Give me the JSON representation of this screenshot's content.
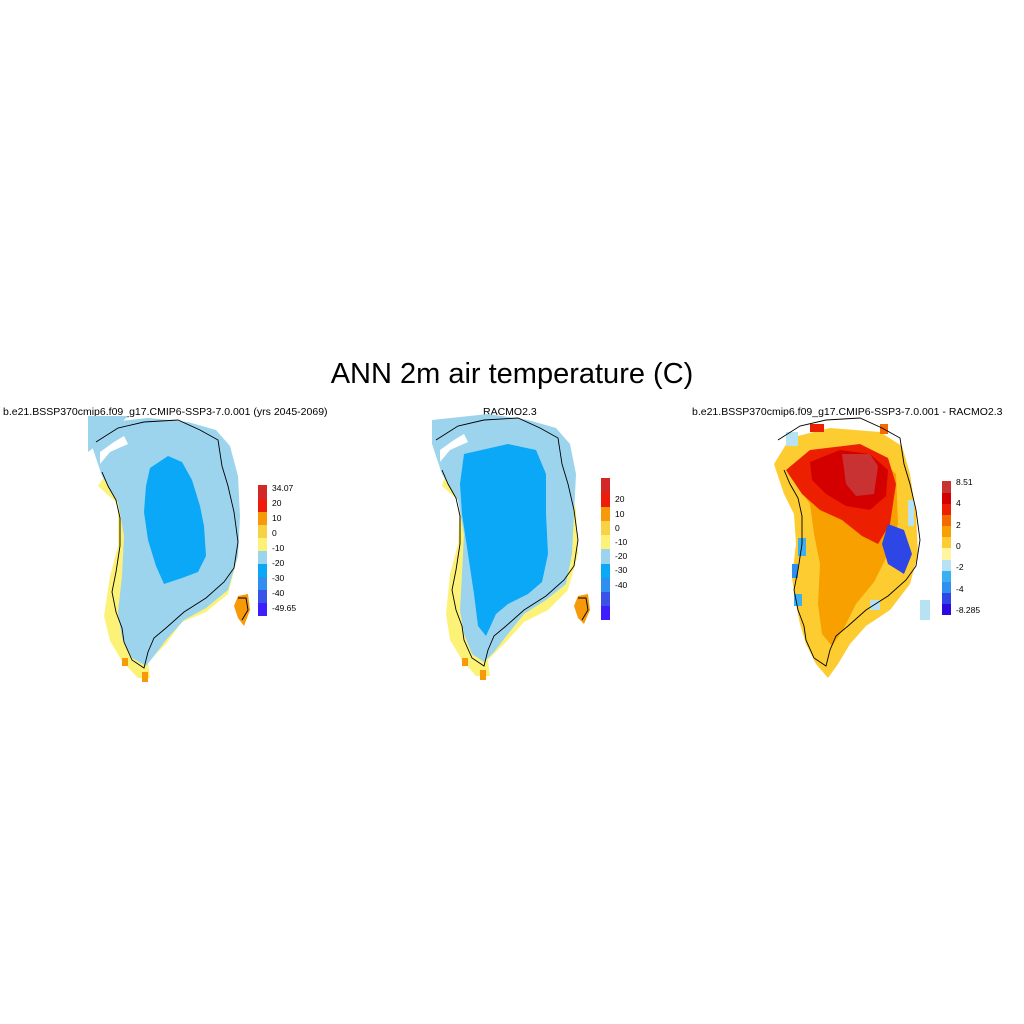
{
  "title": "ANN 2m air temperature (C)",
  "panels": [
    {
      "title": "b.e21.BSSP370cmip6.f09_g17.CMIP6-SSP3-7.0.001 (yrs 2045-2069)",
      "colorbar": {
        "colors": [
          "#3c1eff",
          "#3a52e8",
          "#2f8ff0",
          "#0aa8f7",
          "#9cd4ee",
          "#fdf278",
          "#f7d245",
          "#f79a0a",
          "#f01c0a",
          "#d42828"
        ],
        "labels": [
          "34.07",
          "20",
          "10",
          "0",
          "-10",
          "-20",
          "-30",
          "-40",
          "-49.65"
        ]
      }
    },
    {
      "title": "RACMO2.3",
      "colorbar": {
        "colors": [
          "#3c1eff",
          "#3a52e8",
          "#2f8ff0",
          "#0aa8f7",
          "#9cd4ee",
          "#fdf278",
          "#f7d245",
          "#f79a0a",
          "#f01c0a",
          "#d42828"
        ],
        "labels": [
          "20",
          "10",
          "0",
          "-10",
          "-20",
          "-30",
          "-40"
        ]
      }
    },
    {
      "title": "b.e21.BSSP370cmip6.f09_g17.CMIP6-SSP3-7.0.001 - RACMO2.3",
      "colorbar": {
        "colors": [
          "#2a0ae0",
          "#2e46e6",
          "#2f8ff0",
          "#3ab0f0",
          "#b6e2f4",
          "#fff5a0",
          "#fccc30",
          "#f8a000",
          "#f46a00",
          "#ec2000",
          "#d40000",
          "#c83232"
        ],
        "labels": [
          "8.51",
          "4",
          "2",
          "0",
          "-2",
          "-4",
          "-8.285"
        ]
      }
    }
  ]
}
